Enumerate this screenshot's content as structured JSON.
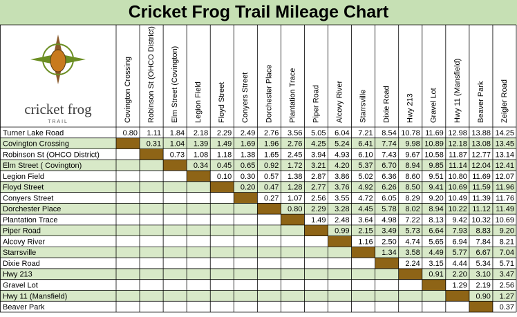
{
  "title": "Cricket Frog Trail Mileage Chart",
  "logo": {
    "name": "cricket frog",
    "sub": "TRAIL"
  },
  "columns": [
    "Covington Crossing",
    "Robinson St (OHCO District)",
    "Elm Street (Covington)",
    "Legion Field",
    "Floyd Street",
    "Conyers Street",
    "Dorchester Place",
    "Plantation Trace",
    "Piper Road",
    "Alcovy River",
    "Starrsville",
    "Dixie Road",
    "Hwy 213",
    "Gravel Lot",
    "Hwy 11 (Mansfield)",
    "Beaver Park",
    "Zeigler Road"
  ],
  "rows": [
    {
      "label": "Turner Lake Road",
      "values": [
        "0.80",
        "1.11",
        "1.84",
        "2.18",
        "2.29",
        "2.49",
        "2.76",
        "3.56",
        "5.05",
        "6.04",
        "7.21",
        "8.54",
        "10.78",
        "11.69",
        "12.98",
        "13.88",
        "14.25"
      ]
    },
    {
      "label": "Covington Crossing",
      "values": [
        "0.31",
        "1.04",
        "1.39",
        "1.49",
        "1.69",
        "1.96",
        "2.76",
        "4.25",
        "5.24",
        "6.41",
        "7.74",
        "9.98",
        "10.89",
        "12.18",
        "13.08",
        "13.45"
      ]
    },
    {
      "label": "Robinson St (OHCO District)",
      "values": [
        "0.73",
        "1.08",
        "1.18",
        "1.38",
        "1.65",
        "2.45",
        "3.94",
        "4.93",
        "6.10",
        "7.43",
        "9.67",
        "10.58",
        "11.87",
        "12.77",
        "13.14"
      ]
    },
    {
      "label": "Elm Street ( Covington)",
      "values": [
        "0.34",
        "0.45",
        "0.65",
        "0.92",
        "1.72",
        "3.21",
        "4.20",
        "5.37",
        "6.70",
        "8.94",
        "9.85",
        "11.14",
        "12.04",
        "12.41"
      ]
    },
    {
      "label": "Legion Field",
      "values": [
        "0.10",
        "0.30",
        "0.57",
        "1.38",
        "2.87",
        "3.86",
        "5.02",
        "6.36",
        "8.60",
        "9.51",
        "10.80",
        "11.69",
        "12.07"
      ]
    },
    {
      "label": "Floyd Street",
      "values": [
        "0.20",
        "0.47",
        "1.28",
        "2.77",
        "3.76",
        "4.92",
        "6.26",
        "8.50",
        "9.41",
        "10.69",
        "11.59",
        "11.96"
      ]
    },
    {
      "label": "Conyers Street",
      "values": [
        "0.27",
        "1.07",
        "2.56",
        "3.55",
        "4.72",
        "6.05",
        "8.29",
        "9.20",
        "10.49",
        "11.39",
        "11.76"
      ]
    },
    {
      "label": "Dorchester Place",
      "values": [
        "0.80",
        "2.29",
        "3.28",
        "4.45",
        "5.78",
        "8.02",
        "8.94",
        "10.22",
        "11.12",
        "11.49"
      ]
    },
    {
      "label": "Plantation Trace",
      "values": [
        "1.49",
        "2.48",
        "3.64",
        "4.98",
        "7.22",
        "8.13",
        "9.42",
        "10.32",
        "10.69"
      ]
    },
    {
      "label": "Piper Road",
      "values": [
        "0.99",
        "2.15",
        "3.49",
        "5.73",
        "6.64",
        "7.93",
        "8.83",
        "9.20"
      ]
    },
    {
      "label": "Alcovy River",
      "values": [
        "1.16",
        "2.50",
        "4.74",
        "5.65",
        "6.94",
        "7.84",
        "8.21"
      ]
    },
    {
      "label": "Starrsville",
      "values": [
        "1.34",
        "3.58",
        "4.49",
        "5.77",
        "6.67",
        "7.04"
      ]
    },
    {
      "label": "Dixie Road",
      "values": [
        "2.24",
        "3.15",
        "4.44",
        "5.34",
        "5.71"
      ]
    },
    {
      "label": "Hwy 213",
      "values": [
        "0.91",
        "2.20",
        "3.10",
        "3.47"
      ]
    },
    {
      "label": "Gravel Lot",
      "values": [
        "1.29",
        "2.19",
        "2.56"
      ]
    },
    {
      "label": "Hwy 11 (Mansfield)",
      "values": [
        "0.90",
        "1.27"
      ]
    },
    {
      "label": "Beaver Park",
      "values": [
        "0.37"
      ]
    }
  ]
}
